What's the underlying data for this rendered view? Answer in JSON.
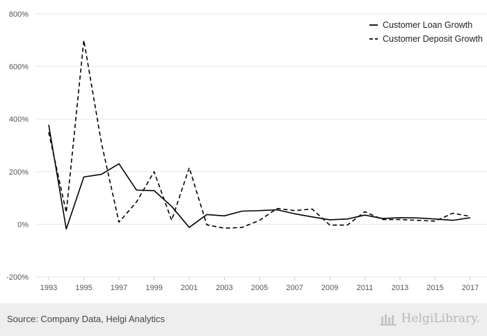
{
  "chart_data": {
    "type": "line",
    "x": [
      1993,
      1994,
      1995,
      1996,
      1997,
      1998,
      1999,
      2000,
      2001,
      2002,
      2003,
      2004,
      2005,
      2006,
      2007,
      2008,
      2009,
      2010,
      2011,
      2012,
      2013,
      2014,
      2015,
      2016,
      2017
    ],
    "x_tick_labels": [
      "1993",
      "1995",
      "1997",
      "1999",
      "2001",
      "2003",
      "2005",
      "2007",
      "2009",
      "2011",
      "2013",
      "2015",
      "2017"
    ],
    "y_tick_labels": [
      "800%",
      "600%",
      "400%",
      "200%",
      "0%",
      "-200%"
    ],
    "y_ticks": [
      800,
      600,
      400,
      200,
      0,
      -200
    ],
    "ylim": [
      -200,
      800
    ],
    "grid": "horizontal",
    "legend_position": "top-right",
    "series": [
      {
        "name": "Customer Loan Growth",
        "style": "solid",
        "values": [
          378,
          -18,
          180,
          190,
          230,
          130,
          128,
          68,
          -12,
          37,
          32,
          50,
          52,
          55,
          40,
          28,
          17,
          20,
          35,
          22,
          25,
          24,
          20,
          15,
          25
        ]
      },
      {
        "name": "Customer Deposit Growth",
        "style": "dashed",
        "values": [
          350,
          45,
          700,
          310,
          8,
          85,
          200,
          15,
          215,
          -2,
          -15,
          -12,
          15,
          60,
          52,
          58,
          -3,
          -3,
          48,
          18,
          18,
          15,
          12,
          42,
          30
        ]
      }
    ],
    "colors": {
      "line": "#000000",
      "grid": "#e6e6e6",
      "tick_text": "#555555"
    }
  },
  "footer": {
    "source": "Source: Company Data, Helgi Analytics",
    "brand": "HelgiLibrary."
  }
}
